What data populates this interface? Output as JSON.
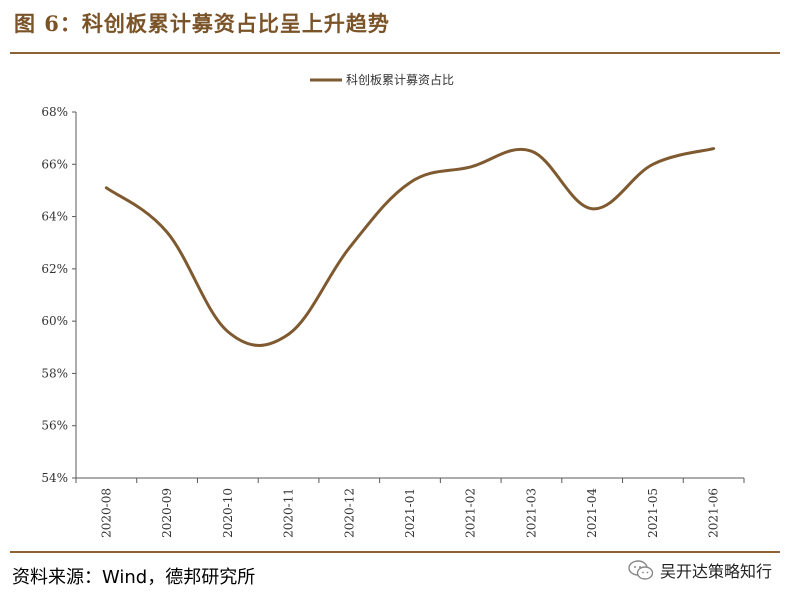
{
  "title": "图 6：科创板累计募资占比呈上升趋势",
  "source": "资料来源：Wind，德邦研究所",
  "watermark": "吴开达策略知行",
  "colors": {
    "line": "#7f5a30",
    "accent": "#8b6337",
    "axis": "#595959"
  },
  "chart_data": {
    "type": "line",
    "categories": [
      "2020-08",
      "2020-09",
      "2020-10",
      "2020-11",
      "2020-12",
      "2021-01",
      "2021-02",
      "2021-03",
      "2021-04",
      "2021-05",
      "2021-06"
    ],
    "series": [
      {
        "name": "科创板累计募资占比",
        "values": [
          65.1,
          63.4,
          59.6,
          59.5,
          62.8,
          65.3,
          65.9,
          66.5,
          64.3,
          66.0,
          66.6
        ]
      }
    ],
    "yticks": [
      "54%",
      "56%",
      "58%",
      "60%",
      "62%",
      "64%",
      "66%",
      "68%"
    ],
    "ylim": [
      54,
      68
    ],
    "legend_position": "top-center",
    "grid": false
  }
}
